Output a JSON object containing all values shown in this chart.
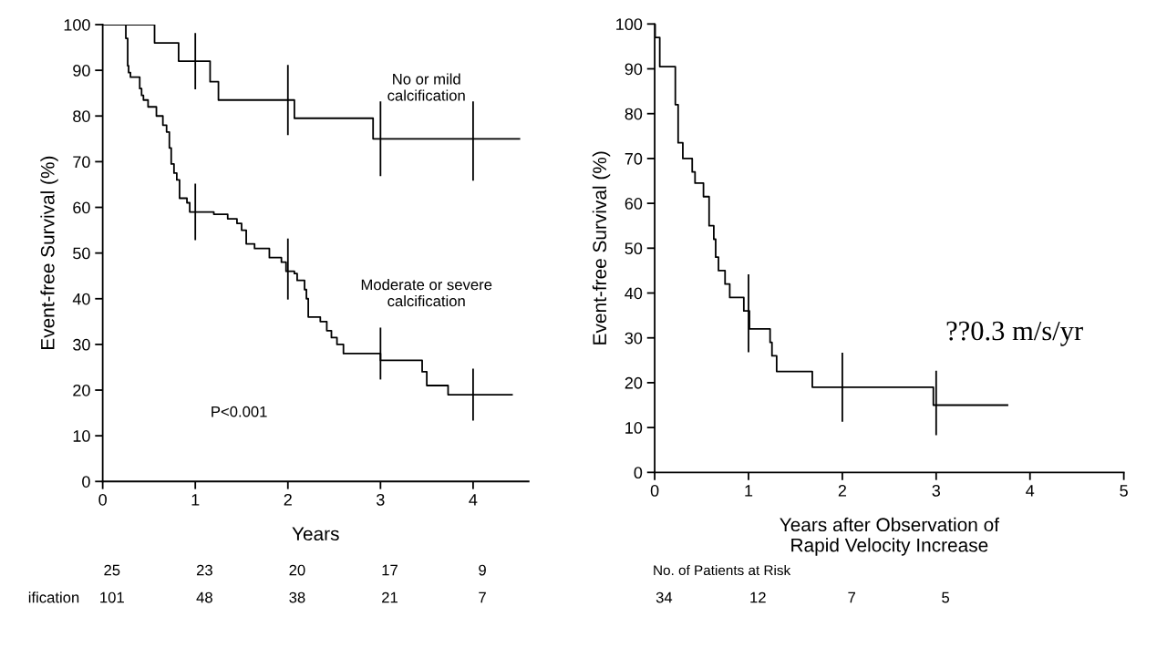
{
  "chart_data": [
    {
      "type": "step",
      "ylabel": "Event-free Survival (%)",
      "xlabel": "Years",
      "xlim": [
        0,
        4.6
      ],
      "xticks": [
        0,
        1,
        2,
        3,
        4
      ],
      "ylim": [
        0,
        100
      ],
      "yticks": [
        0,
        10,
        20,
        30,
        40,
        50,
        60,
        70,
        80,
        90,
        100
      ],
      "grid": false,
      "legend": false,
      "series": [
        {
          "color": "#000000",
          "x": [
            0,
            0.56,
            0.82,
            1,
            1.16,
            1.25,
            2,
            2.07,
            2.92,
            3,
            4,
            4.5
          ],
          "values": [
            100,
            96,
            92,
            92,
            87.5,
            83.5,
            83.5,
            79.5,
            75,
            75,
            75,
            75
          ],
          "errors": [
            null,
            null,
            null,
            [
              86,
              98
            ],
            null,
            null,
            [
              76,
              91
            ],
            null,
            null,
            [
              67,
              83
            ],
            [
              66,
              83
            ],
            null
          ]
        },
        {
          "color": "#000000",
          "x": [
            0,
            0.25,
            0.27,
            0.28,
            0.3,
            0.4,
            0.42,
            0.44,
            0.49,
            0.58,
            0.65,
            0.69,
            0.72,
            0.74,
            0.77,
            0.8,
            0.83,
            0.91,
            0.94,
            1,
            1.2,
            1.35,
            1.45,
            1.5,
            1.55,
            1.64,
            1.8,
            1.93,
            1.98,
            2,
            2.07,
            2.1,
            2.18,
            2.2,
            2.22,
            2.35,
            2.42,
            2.47,
            2.53,
            2.6,
            3.0,
            3.45,
            3.5,
            3.73,
            4,
            4.42
          ],
          "values": [
            100,
            97,
            91,
            89.5,
            88.5,
            86,
            84.5,
            83.5,
            82,
            80,
            78,
            76.5,
            73,
            69.5,
            67.5,
            66,
            62,
            61,
            59,
            59,
            58.5,
            57.5,
            56.5,
            55,
            52,
            51,
            49,
            48,
            46,
            46,
            45.5,
            44,
            42,
            40,
            36,
            35,
            33,
            31.5,
            30,
            28,
            26.5,
            24,
            21,
            19,
            19,
            19
          ],
          "errors": [
            null,
            null,
            null,
            null,
            null,
            null,
            null,
            null,
            null,
            null,
            null,
            null,
            null,
            null,
            null,
            null,
            null,
            null,
            null,
            [
              53,
              65
            ],
            null,
            null,
            null,
            null,
            null,
            null,
            null,
            null,
            null,
            [
              40,
              53
            ],
            null,
            null,
            null,
            null,
            null,
            null,
            null,
            null,
            null,
            null,
            [
              22.5,
              33.5
            ],
            null,
            null,
            null,
            [
              13.5,
              24.5
            ],
            null
          ]
        }
      ],
      "annotations": [
        "No or mild\ncalcification",
        "Moderate or severe\ncalcification",
        "P<0.001",
        "25  23  20  17  9",
        "ification  101  48  38  21  7"
      ]
    },
    {
      "type": "step",
      "ylabel": "Event-free Survival (%)",
      "xlabel": "Years after Observation of\nRapid Velocity Increase",
      "xlim": [
        0,
        5
      ],
      "xticks": [
        0,
        1,
        2,
        3,
        4,
        5
      ],
      "ylim": [
        0,
        100
      ],
      "yticks": [
        0,
        10,
        20,
        30,
        40,
        50,
        60,
        70,
        80,
        90,
        100
      ],
      "grid": false,
      "legend": false,
      "series": [
        {
          "color": "#000000",
          "x": [
            0,
            0.005,
            0.054,
            0.22,
            0.25,
            0.3,
            0.4,
            0.43,
            0.52,
            0.58,
            0.63,
            0.65,
            0.68,
            0.75,
            0.8,
            0.95,
            1,
            1.01,
            1.23,
            1.25,
            1.3,
            1.68,
            2,
            2.97,
            3,
            3.76
          ],
          "values": [
            100,
            97,
            90.5,
            82,
            73.5,
            70,
            67,
            64.5,
            61.5,
            55,
            52,
            48,
            45,
            42,
            39,
            36,
            36,
            32,
            29,
            26,
            22.5,
            19,
            19,
            15,
            15,
            15
          ],
          "errors": [
            null,
            null,
            null,
            null,
            null,
            null,
            null,
            null,
            null,
            null,
            null,
            null,
            null,
            null,
            null,
            null,
            [
              27,
              44
            ],
            null,
            null,
            null,
            null,
            null,
            [
              11.5,
              26.5
            ],
            null,
            [
              8.5,
              22.5
            ],
            null
          ]
        }
      ],
      "annotations": [
        "??0.3 m/s/yr",
        "No. of Patients at Risk",
        "34  12  7  5"
      ]
    }
  ]
}
